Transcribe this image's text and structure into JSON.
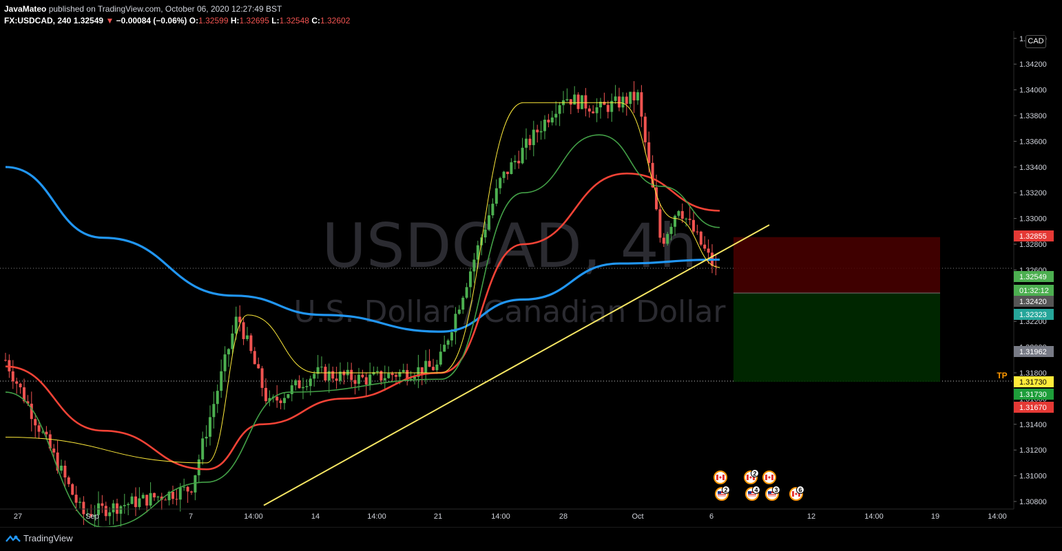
{
  "header": {
    "author": "JavaMateo",
    "published": " published on TradingView.com, October 06, 2020 12:27:49 BST",
    "symbol": "FX:USDCAD, 240",
    "price": "1.32549",
    "change_arrow": "▼",
    "change": "−0.00084 (−0.06%)",
    "o_label": "O:",
    "o_value": "1.32599",
    "h_label": "H:",
    "h_value": "1.32695",
    "l_label": "L:",
    "l_value": "1.32548",
    "c_label": "C:",
    "c_value": "1.32602"
  },
  "watermark": {
    "symbol": "USDCAD, 4h",
    "description": "U.S. Dollar / Canadian Dollar"
  },
  "currency_label": "CAD",
  "footer": {
    "brand": "TradingView"
  },
  "colors": {
    "up": "#4caf50",
    "down": "#ef5350",
    "ma_blue": "#2196f3",
    "ma_red": "#f44336",
    "ma_green": "#43a047",
    "ma_yellow": "#ffeb3b",
    "trendline": "#f5e663",
    "background": "#000000"
  },
  "chart_data": {
    "type": "candlestick",
    "timeframe": "240",
    "ylim": [
      1.308,
      1.3445
    ],
    "y_ticks": [
      "1.30800",
      "1.31000",
      "1.31200",
      "1.31400",
      "1.31600",
      "1.31800",
      "1.32000",
      "1.32200",
      "1.32400",
      "1.32600",
      "1.32800",
      "1.33000",
      "1.33200",
      "1.33400",
      "1.33600",
      "1.33800",
      "1.34000",
      "1.34200",
      "1.34400"
    ],
    "x_ticks": [
      "27",
      "Sep",
      "7",
      "14:00",
      "14",
      "14:00",
      "21",
      "14:00",
      "28",
      "Oct",
      "6",
      "12",
      "14:00",
      "19",
      "14:00"
    ],
    "candles_ohlc_keypoints": [
      {
        "date": "2020-08-27",
        "close": 1.319
      },
      {
        "date": "2020-08-31",
        "close": 1.307
      },
      {
        "date": "2020-09-07",
        "close": 1.309
      },
      {
        "date": "2020-09-09",
        "close": 1.3225
      },
      {
        "date": "2020-09-11",
        "close": 1.3155
      },
      {
        "date": "2020-09-15",
        "close": 1.318
      },
      {
        "date": "2020-09-18",
        "close": 1.3175
      },
      {
        "date": "2020-09-21",
        "close": 1.3185
      },
      {
        "date": "2020-09-23",
        "close": 1.333
      },
      {
        "date": "2020-09-25",
        "close": 1.3395
      },
      {
        "date": "2020-09-28",
        "close": 1.3385
      },
      {
        "date": "2020-09-30",
        "close": 1.3395
      },
      {
        "date": "2020-10-01",
        "close": 1.328
      },
      {
        "date": "2020-10-02",
        "close": 1.331
      },
      {
        "date": "2020-10-06",
        "close": 1.32549
      }
    ],
    "moving_averages": [
      {
        "color": "blue",
        "key_values": [
          1.334,
          1.324,
          1.3212,
          1.3228,
          1.3268
        ]
      },
      {
        "color": "red",
        "key_values": [
          1.3185,
          1.3105,
          1.316,
          1.318,
          1.3335,
          1.3305
        ]
      },
      {
        "color": "green",
        "key_values": [
          1.3165,
          1.3085,
          1.3175,
          1.336,
          1.338,
          1.3293
        ]
      },
      {
        "color": "yellow",
        "key_values": [
          1.313,
          1.32,
          1.339,
          1.332,
          1.3262
        ]
      }
    ],
    "trendline": {
      "from": {
        "date": "2020-09-10",
        "price": 1.3077
      },
      "to": {
        "date": "2020-10-09",
        "price": 1.3295
      }
    },
    "position": {
      "stop": 1.32855,
      "entry": 1.3242,
      "target": 1.3173
    },
    "tp_label": "TP",
    "price_labels": [
      {
        "value": "1.32855",
        "color": "#e53935"
      },
      {
        "value": "1.32549",
        "color": "#4caf50"
      },
      {
        "value": "01:32:12",
        "color": "#4caf50"
      },
      {
        "value": "1.32420",
        "color": "#555555"
      },
      {
        "value": "1.32323",
        "color": "#26a69a"
      },
      {
        "value": "1.31962",
        "color": "#787b86"
      },
      {
        "value": "1.31730",
        "color": "#ffeb3b"
      },
      {
        "value": "1.31730",
        "color": "#1e9e3a"
      },
      {
        "value": "1.31670",
        "color": "#e53935"
      }
    ],
    "events": [
      {
        "flag": "CA",
        "count": ""
      },
      {
        "flag": "US",
        "count": "2"
      },
      {
        "flag": "CA",
        "count": "2"
      },
      {
        "flag": "US",
        "count": "4"
      },
      {
        "flag": "CA",
        "count": ""
      },
      {
        "flag": "US",
        "count": "3"
      },
      {
        "flag": "CA",
        "count": "6"
      }
    ]
  }
}
